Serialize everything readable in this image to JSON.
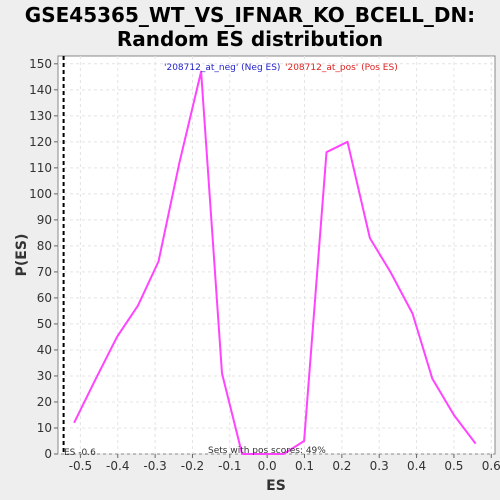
{
  "chart_data": {
    "type": "line",
    "title_line1": "GSE45365_WT_VS_IFNAR_KO_BCELL_DN:",
    "title_line2": "Random ES distribution",
    "xlabel": "ES",
    "ylabel": "P(ES)",
    "xlim": [
      -0.56,
      0.61
    ],
    "ylim": [
      0,
      153
    ],
    "x_ticks": [
      -0.5,
      -0.4,
      -0.3,
      -0.2,
      -0.1,
      0.0,
      0.1,
      0.2,
      0.3,
      0.4,
      0.5,
      0.6
    ],
    "x_tick_labels": [
      "-0.5",
      "-0.4",
      "-0.3",
      "-0.2",
      "-0.1",
      "0.0",
      "0.1",
      "0.2",
      "0.3",
      "0.4",
      "0.5",
      "0.6"
    ],
    "y_ticks": [
      0,
      10,
      20,
      30,
      40,
      50,
      60,
      70,
      80,
      90,
      100,
      110,
      120,
      130,
      140,
      150
    ],
    "grid": true,
    "series": [
      {
        "color": "#ff44ff",
        "x": [
          -0.517,
          -0.462,
          -0.402,
          -0.346,
          -0.291,
          -0.235,
          -0.177,
          -0.121,
          -0.067,
          -0.012,
          0.044,
          0.099,
          0.159,
          0.215,
          0.275,
          0.33,
          0.389,
          0.442,
          0.5,
          0.558
        ],
        "y": [
          12,
          28,
          45,
          57,
          74,
          112,
          147,
          31,
          0,
          0,
          0,
          5,
          116,
          120,
          83,
          70,
          54,
          29,
          15,
          4
        ]
      }
    ],
    "es_marker": {
      "x": -0.545,
      "label": "ES -0.6"
    },
    "annotations": {
      "neg": "'208712_at_neg' (Neg ES)",
      "pos": "'208712_at_pos' (Pos ES)",
      "sets": "Sets with pos scores: 49%"
    },
    "colors": {
      "line": "#ff44ff",
      "neg": "#2222cc",
      "pos": "#dd2222",
      "marker": "#000000"
    }
  }
}
